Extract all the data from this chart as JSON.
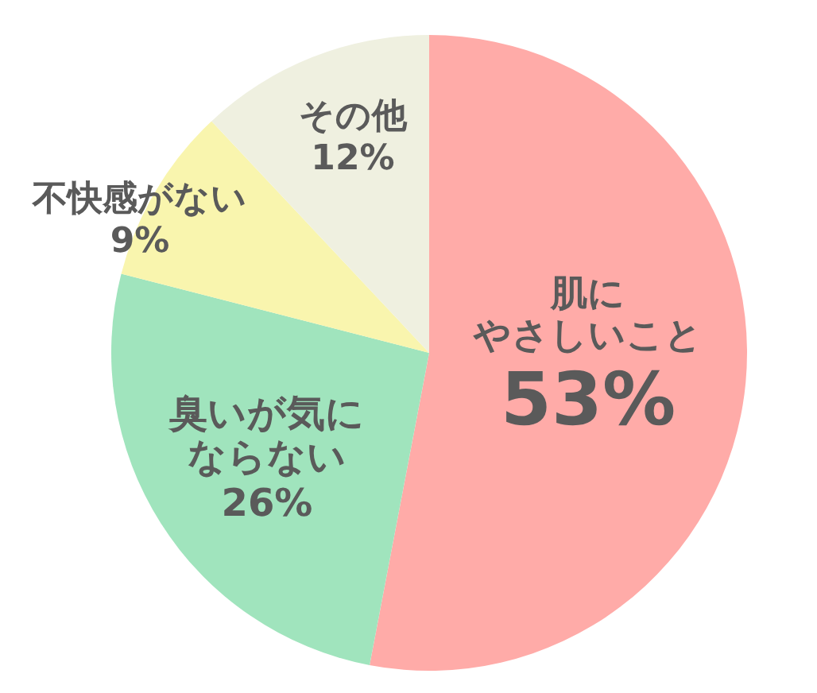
{
  "chart_data": {
    "type": "pie",
    "categories": [
      "肌にやさしいこと",
      "臭いが気にならない",
      "不快感がない",
      "その他"
    ],
    "values": [
      53,
      26,
      9,
      12
    ],
    "colors": [
      "#ffaba8",
      "#a0e4bd",
      "#f9f5ae",
      "#eff0e0"
    ],
    "value_labels": [
      "53%",
      "26%",
      "9%",
      "12%"
    ]
  }
}
